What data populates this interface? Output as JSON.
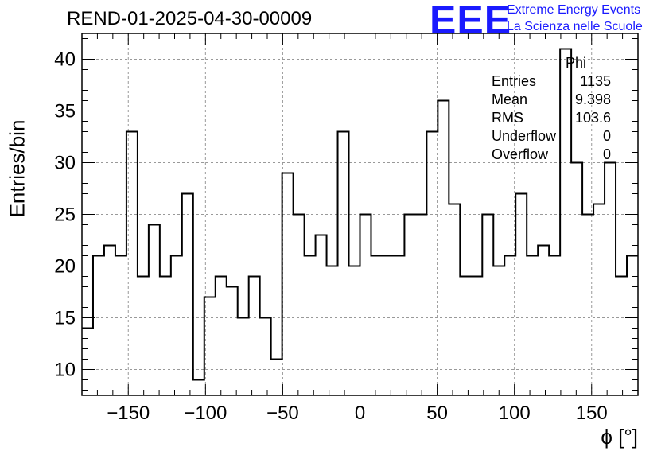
{
  "title": "REND-01-2025-04-30-00009",
  "logo": {
    "mark": "EEE",
    "line1": "Extreme Energy Events",
    "line2": "La Scienza nelle Scuole",
    "color": "#1a1aff"
  },
  "stats": {
    "name": "Phi",
    "rows": [
      {
        "label": "Entries",
        "value": "1135"
      },
      {
        "label": "Mean",
        "value": "9.398"
      },
      {
        "label": "RMS",
        "value": "103.6"
      },
      {
        "label": "Underflow",
        "value": "0"
      },
      {
        "label": "Overflow",
        "value": "0"
      }
    ]
  },
  "chart_data": {
    "type": "histogram",
    "title": "REND-01-2025-04-30-00009",
    "xlabel": "ϕ [°]",
    "ylabel": "Entries/bin",
    "xlim": [
      -180,
      180
    ],
    "ylim": [
      7.5,
      42.5
    ],
    "bin_width": 7.2,
    "xticks": [
      -150,
      -100,
      -50,
      0,
      50,
      100,
      150
    ],
    "yticks": [
      10,
      15,
      20,
      25,
      30,
      35,
      40
    ],
    "tick_labels_x": [
      "−150",
      "−100",
      "−50",
      "0",
      "50",
      "100",
      "150"
    ],
    "tick_labels_y": [
      "10",
      "15",
      "20",
      "25",
      "30",
      "35",
      "40"
    ],
    "grid": true,
    "values": [
      14,
      21,
      22,
      21,
      33,
      19,
      24,
      19,
      21,
      27,
      9,
      17,
      19,
      18,
      15,
      19,
      15,
      11,
      29,
      25,
      21,
      23,
      20,
      33,
      20,
      25,
      21,
      21,
      21,
      25,
      25,
      33,
      36,
      26,
      19,
      19,
      25,
      20,
      21,
      27,
      21,
      22,
      21,
      41,
      30,
      25,
      26,
      30,
      19,
      21
    ]
  }
}
